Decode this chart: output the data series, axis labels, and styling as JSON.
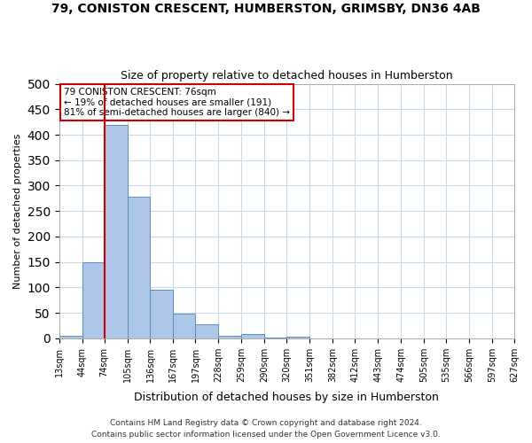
{
  "title_line1": "79, CONISTON CRESCENT, HUMBERSTON, GRIMSBY, DN36 4AB",
  "title_line2": "Size of property relative to detached houses in Humberston",
  "xlabel": "Distribution of detached houses by size in Humberston",
  "ylabel": "Number of detached properties",
  "footnote1": "Contains HM Land Registry data © Crown copyright and database right 2024.",
  "footnote2": "Contains public sector information licensed under the Open Government Licence v3.0.",
  "annotation_line1": "79 CONISTON CRESCENT: 76sqm",
  "annotation_line2": "← 19% of detached houses are smaller (191)",
  "annotation_line3": "81% of semi-detached houses are larger (840) →",
  "property_size": 76,
  "bar_edges": [
    13,
    44,
    74,
    105,
    136,
    167,
    197,
    228,
    259,
    290,
    320,
    351,
    382,
    412,
    443,
    474,
    505,
    535,
    566,
    597,
    627
  ],
  "bar_heights": [
    5,
    150,
    420,
    278,
    95,
    48,
    28,
    5,
    9,
    2,
    3,
    0,
    0,
    0,
    0,
    0,
    0,
    0,
    0,
    0
  ],
  "bar_color": "#aec6e8",
  "bar_edge_color": "#5a8fc0",
  "vline_color": "#cc0000",
  "vline_x": 74,
  "annotation_box_color": "#cc0000",
  "annotation_box_fill": "#ffffff",
  "grid_color": "#c8d8e8",
  "background_color": "#ffffff",
  "ylim": [
    0,
    500
  ],
  "yticks": [
    0,
    50,
    100,
    150,
    200,
    250,
    300,
    350,
    400,
    450,
    500
  ]
}
